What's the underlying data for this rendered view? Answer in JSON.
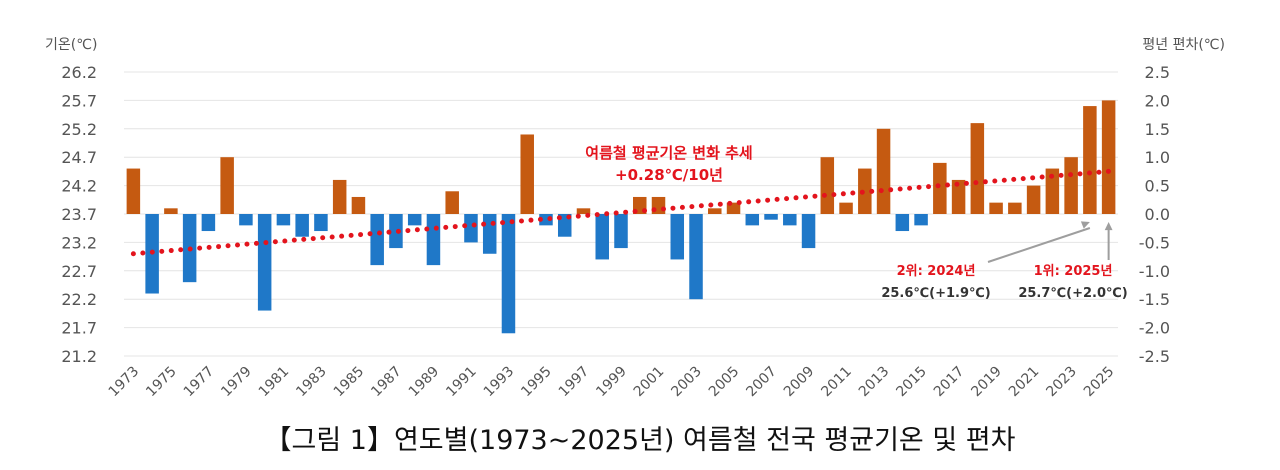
{
  "caption": "【그림 1】연도별(1973~2025년) 여름철 전국 평균기온 및 편차",
  "chart_data": {
    "type": "bar",
    "left_axis_title": "기온(℃)",
    "right_axis_title": "평년 편차(℃)",
    "left_ticks": [
      "26.2",
      "25.7",
      "25.2",
      "24.7",
      "24.2",
      "23.7",
      "23.2",
      "22.7",
      "22.2",
      "21.7",
      "21.2"
    ],
    "right_ticks": [
      "2.5",
      "2.0",
      "1.5",
      "1.0",
      "0.5",
      "0.0",
      "-0.5",
      "-1.0",
      "-1.5",
      "-2.0",
      "-2.5"
    ],
    "ylim_left": [
      21.2,
      26.2
    ],
    "ylim_right": [
      -2.5,
      2.5
    ],
    "baseline": 23.7,
    "x_tick_labels": [
      "1973",
      "1975",
      "1977",
      "1979",
      "1981",
      "1983",
      "1985",
      "1987",
      "1989",
      "1991",
      "1993",
      "1995",
      "1997",
      "1999",
      "2001",
      "2003",
      "2005",
      "2007",
      "2009",
      "2011",
      "2013",
      "2015",
      "2017",
      "2019",
      "2021",
      "2023",
      "2025"
    ],
    "years": [
      1973,
      1974,
      1975,
      1976,
      1977,
      1978,
      1979,
      1980,
      1981,
      1982,
      1983,
      1984,
      1985,
      1986,
      1987,
      1988,
      1989,
      1990,
      1991,
      1992,
      1993,
      1994,
      1995,
      1996,
      1997,
      1998,
      1999,
      2000,
      2001,
      2002,
      2003,
      2004,
      2005,
      2006,
      2007,
      2008,
      2009,
      2010,
      2011,
      2012,
      2013,
      2014,
      2015,
      2016,
      2017,
      2018,
      2019,
      2020,
      2021,
      2022,
      2023,
      2024,
      2025
    ],
    "anomalies": [
      0.8,
      -1.4,
      0.1,
      -1.2,
      -0.3,
      1.0,
      -0.2,
      -1.7,
      -0.2,
      -0.4,
      -0.3,
      0.6,
      0.3,
      -0.9,
      -0.6,
      -0.2,
      -0.9,
      0.4,
      -0.5,
      -0.7,
      -2.1,
      1.4,
      -0.2,
      -0.4,
      0.1,
      -0.8,
      -0.6,
      0.3,
      0.3,
      -0.8,
      -1.5,
      0.1,
      0.2,
      -0.2,
      -0.1,
      -0.2,
      -0.6,
      1.0,
      0.2,
      0.8,
      1.5,
      -0.3,
      -0.2,
      0.9,
      0.6,
      1.6,
      0.2,
      0.2,
      0.5,
      0.8,
      1.0,
      1.9,
      2.0
    ],
    "positive_color": "#c55a11",
    "negative_color": "#1f78c8",
    "trend": {
      "label_line1": "여름철 평균기온 변화 추세",
      "label_line2": "+0.28℃/10년",
      "color": "#e3141d",
      "start": {
        "year": 1973,
        "anomaly": -0.7
      },
      "end": {
        "year": 2025,
        "anomaly": 0.75
      }
    },
    "annotations": [
      {
        "rank": "2위: 2024년",
        "value": "25.6℃(+1.9℃)",
        "year": 2024
      },
      {
        "rank": "1위: 2025년",
        "value": "25.7℃(+2.0℃)",
        "year": 2025
      }
    ],
    "grid": true
  }
}
